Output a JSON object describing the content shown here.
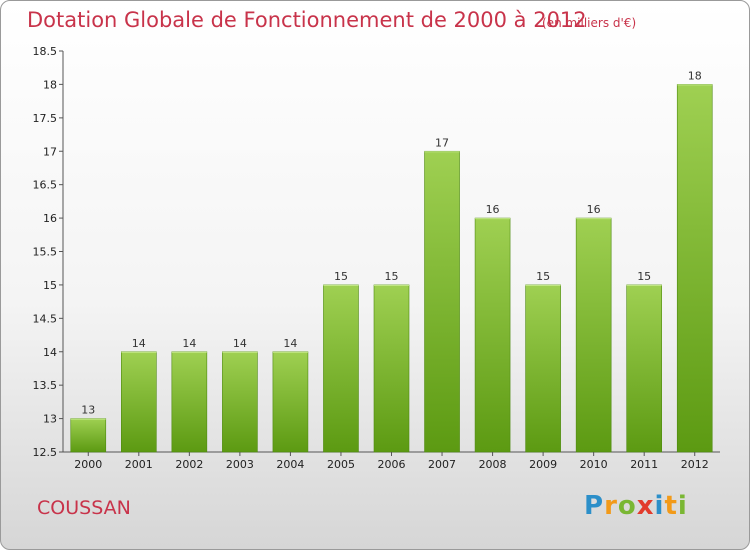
{
  "title": "Dotation Globale de Fonctionnement de 2000 à 2012",
  "subtitle": "(en milliers d'€)",
  "commune": "COUSSAN",
  "brand": {
    "name": "Proxiti",
    "letters": [
      {
        "ch": "P",
        "color": "#2c8fc9"
      },
      {
        "ch": "r",
        "color": "#f29a19"
      },
      {
        "ch": "o",
        "color": "#7ab733"
      },
      {
        "ch": "x",
        "color": "#e23b2c"
      },
      {
        "ch": "i",
        "color": "#2c8fc9"
      },
      {
        "ch": "t",
        "color": "#f29a19"
      },
      {
        "ch": "i",
        "color": "#7ab733"
      }
    ]
  },
  "colors": {
    "accent": "#c8334a",
    "bar_top": "#9fd052",
    "bar_bottom": "#5c9a12"
  },
  "chart_data": {
    "type": "bar",
    "categories": [
      "2000",
      "2001",
      "2002",
      "2003",
      "2004",
      "2005",
      "2006",
      "2007",
      "2008",
      "2009",
      "2010",
      "2011",
      "2012"
    ],
    "values": [
      13,
      14,
      14,
      14,
      14,
      15,
      15,
      17,
      16,
      15,
      16,
      15,
      18
    ],
    "ylim": [
      12.5,
      18.5
    ],
    "yticks": [
      12.5,
      13,
      13.5,
      14,
      14.5,
      15,
      15.5,
      16,
      16.5,
      17,
      17.5,
      18,
      18.5
    ],
    "ytick_labels": [
      "12.5",
      "13",
      "13.5",
      "14",
      "14.5",
      "15",
      "15.5",
      "16",
      "16.5",
      "17",
      "17.5",
      "18",
      "18.5"
    ],
    "data_labels": [
      "13",
      "14",
      "14",
      "14",
      "14",
      "15",
      "15",
      "17",
      "16",
      "15",
      "16",
      "15",
      "18"
    ],
    "grid": false,
    "legend": "none"
  }
}
